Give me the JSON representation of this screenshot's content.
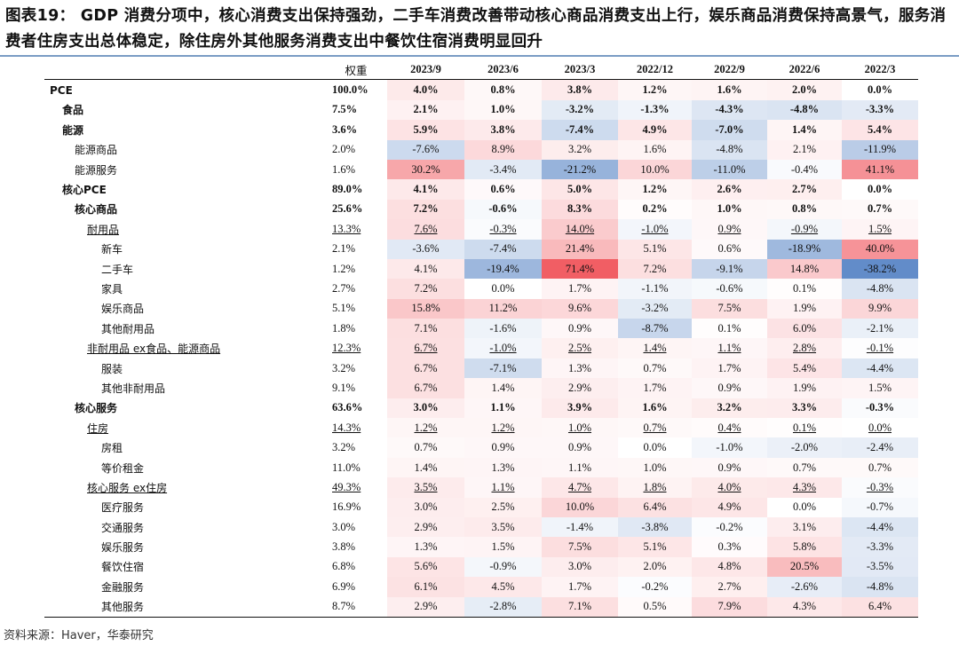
{
  "title": "图表19： GDP 消费分项中，核心消费支出保持强劲，二手车消费改善带动核心商品消费支出上行，娱乐商品消费保持高景气，服务消费者住房支出总体稳定，除住房外其他服务消费支出中餐饮住宿消费明显回升",
  "source": "资料来源：Haver，华泰研究",
  "columns": [
    "权重",
    "2023/9",
    "2023/6",
    "2023/3",
    "2022/12",
    "2022/9",
    "2022/6",
    "2022/3"
  ],
  "heatmap_colors": {
    "positive": "#f0555c",
    "negative": "#5a86c6",
    "neutral": "#ffffff"
  },
  "rows": [
    {
      "label": "PCE",
      "level": 0,
      "bold": true,
      "underline": false,
      "weight": "100.0%",
      "values": [
        "4.0%",
        "0.8%",
        "3.8%",
        "1.2%",
        "1.6%",
        "2.0%",
        "0.0%"
      ]
    },
    {
      "label": "食品",
      "level": 1,
      "bold": true,
      "underline": false,
      "weight": "7.5%",
      "values": [
        "2.1%",
        "1.0%",
        "-3.2%",
        "-1.3%",
        "-4.3%",
        "-4.8%",
        "-3.3%"
      ]
    },
    {
      "label": "能源",
      "level": 1,
      "bold": true,
      "underline": false,
      "weight": "3.6%",
      "values": [
        "5.9%",
        "3.8%",
        "-7.4%",
        "4.9%",
        "-7.0%",
        "1.4%",
        "5.4%"
      ]
    },
    {
      "label": "能源商品",
      "level": 2,
      "bold": false,
      "underline": false,
      "weight": "2.0%",
      "values": [
        "-7.6%",
        "8.9%",
        "3.2%",
        "1.6%",
        "-4.8%",
        "2.1%",
        "-11.9%"
      ]
    },
    {
      "label": "能源服务",
      "level": 2,
      "bold": false,
      "underline": false,
      "weight": "1.6%",
      "values": [
        "30.2%",
        "-3.4%",
        "-21.2%",
        "10.0%",
        "-11.0%",
        "-0.4%",
        "41.1%"
      ]
    },
    {
      "label": "核心PCE",
      "level": 1,
      "bold": true,
      "underline": false,
      "weight": "89.0%",
      "values": [
        "4.1%",
        "0.6%",
        "5.0%",
        "1.2%",
        "2.6%",
        "2.7%",
        "0.0%"
      ]
    },
    {
      "label": "核心商品",
      "level": 2,
      "bold": true,
      "underline": false,
      "weight": "25.6%",
      "values": [
        "7.2%",
        "-0.6%",
        "8.3%",
        "0.2%",
        "1.0%",
        "0.8%",
        "0.7%"
      ]
    },
    {
      "label": "耐用品",
      "level": 3,
      "bold": false,
      "underline": true,
      "weight": "13.3%",
      "values": [
        "7.6%",
        "-0.3%",
        "14.0%",
        "-1.0%",
        "0.9%",
        "-0.9%",
        "1.5%"
      ]
    },
    {
      "label": "新车",
      "level": 4,
      "bold": false,
      "underline": false,
      "weight": "2.1%",
      "values": [
        "-3.6%",
        "-7.4%",
        "21.4%",
        "5.1%",
        "0.6%",
        "-18.9%",
        "40.0%"
      ]
    },
    {
      "label": "二手车",
      "level": 4,
      "bold": false,
      "underline": false,
      "weight": "1.2%",
      "values": [
        "4.1%",
        "-19.4%",
        "71.4%",
        "7.2%",
        "-9.1%",
        "14.8%",
        "-38.2%"
      ]
    },
    {
      "label": "家具",
      "level": 4,
      "bold": false,
      "underline": false,
      "weight": "2.7%",
      "values": [
        "7.2%",
        "0.0%",
        "1.7%",
        "-1.1%",
        "-0.6%",
        "0.1%",
        "-4.8%"
      ]
    },
    {
      "label": "娱乐商品",
      "level": 4,
      "bold": false,
      "underline": false,
      "weight": "5.1%",
      "values": [
        "15.8%",
        "11.2%",
        "9.6%",
        "-3.2%",
        "7.5%",
        "1.9%",
        "9.9%"
      ]
    },
    {
      "label": "其他耐用品",
      "level": 4,
      "bold": false,
      "underline": false,
      "weight": "1.8%",
      "values": [
        "7.1%",
        "-1.6%",
        "0.9%",
        "-8.7%",
        "0.1%",
        "6.0%",
        "-2.1%"
      ]
    },
    {
      "label": "非耐用品 ex食品、能源商品",
      "level": 3,
      "bold": false,
      "underline": true,
      "weight": "12.3%",
      "values": [
        "6.7%",
        "-1.0%",
        "2.5%",
        "1.4%",
        "1.1%",
        "2.8%",
        "-0.1%"
      ]
    },
    {
      "label": "服装",
      "level": 4,
      "bold": false,
      "underline": false,
      "weight": "3.2%",
      "values": [
        "6.7%",
        "-7.1%",
        "1.3%",
        "0.7%",
        "1.7%",
        "5.4%",
        "-4.4%"
      ]
    },
    {
      "label": "其他非耐用品",
      "level": 4,
      "bold": false,
      "underline": false,
      "weight": "9.1%",
      "values": [
        "6.7%",
        "1.4%",
        "2.9%",
        "1.7%",
        "0.9%",
        "1.9%",
        "1.5%"
      ]
    },
    {
      "label": "核心服务",
      "level": 2,
      "bold": true,
      "underline": false,
      "weight": "63.6%",
      "values": [
        "3.0%",
        "1.1%",
        "3.9%",
        "1.6%",
        "3.2%",
        "3.3%",
        "-0.3%"
      ]
    },
    {
      "label": "住房",
      "level": 3,
      "bold": false,
      "underline": true,
      "weight": "14.3%",
      "values": [
        "1.2%",
        "1.2%",
        "1.0%",
        "0.7%",
        "0.4%",
        "0.1%",
        "0.0%"
      ]
    },
    {
      "label": "房租",
      "level": 4,
      "bold": false,
      "underline": false,
      "weight": "3.2%",
      "values": [
        "0.7%",
        "0.9%",
        "0.9%",
        "0.0%",
        "-1.0%",
        "-2.0%",
        "-2.4%"
      ]
    },
    {
      "label": "等价租金",
      "level": 4,
      "bold": false,
      "underline": false,
      "weight": "11.0%",
      "values": [
        "1.4%",
        "1.3%",
        "1.1%",
        "1.0%",
        "0.9%",
        "0.7%",
        "0.7%"
      ]
    },
    {
      "label": "核心服务 ex住房",
      "level": 3,
      "bold": false,
      "underline": true,
      "weight": "49.3%",
      "values": [
        "3.5%",
        "1.1%",
        "4.7%",
        "1.8%",
        "4.0%",
        "4.3%",
        "-0.3%"
      ]
    },
    {
      "label": "医疗服务",
      "level": 4,
      "bold": false,
      "underline": false,
      "weight": "16.9%",
      "values": [
        "3.0%",
        "2.5%",
        "10.0%",
        "6.4%",
        "4.9%",
        "0.0%",
        "-0.7%"
      ]
    },
    {
      "label": "交通服务",
      "level": 4,
      "bold": false,
      "underline": false,
      "weight": "3.0%",
      "values": [
        "2.9%",
        "3.5%",
        "-1.4%",
        "-3.8%",
        "-0.2%",
        "3.1%",
        "-4.4%"
      ]
    },
    {
      "label": "娱乐服务",
      "level": 4,
      "bold": false,
      "underline": false,
      "weight": "3.8%",
      "values": [
        "1.3%",
        "1.5%",
        "7.5%",
        "5.1%",
        "0.3%",
        "5.8%",
        "-3.3%"
      ]
    },
    {
      "label": "餐饮住宿",
      "level": 4,
      "bold": false,
      "underline": false,
      "weight": "6.8%",
      "values": [
        "5.6%",
        "-0.9%",
        "3.0%",
        "2.0%",
        "4.8%",
        "20.5%",
        "-3.5%"
      ]
    },
    {
      "label": "金融服务",
      "level": 4,
      "bold": false,
      "underline": false,
      "weight": "6.9%",
      "values": [
        "6.1%",
        "4.5%",
        "1.7%",
        "-0.2%",
        "2.7%",
        "-2.6%",
        "-4.8%"
      ]
    },
    {
      "label": "其他服务",
      "level": 4,
      "bold": false,
      "underline": false,
      "weight": "8.7%",
      "values": [
        "2.9%",
        "-2.8%",
        "7.1%",
        "0.5%",
        "7.9%",
        "4.3%",
        "6.4%"
      ]
    }
  ]
}
